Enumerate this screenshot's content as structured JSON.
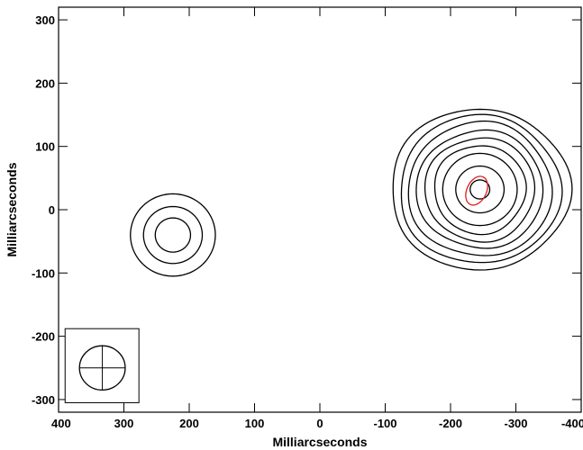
{
  "chart_data": {
    "type": "contour",
    "xlabel": "Milliarcseconds",
    "ylabel": "Milliarcseconds",
    "xlim": [
      400,
      -400
    ],
    "ylim": [
      -320,
      320
    ],
    "xticks": [
      400,
      300,
      200,
      100,
      0,
      -100,
      -200,
      -300,
      -400
    ],
    "yticks": [
      -300,
      -200,
      -100,
      0,
      100,
      200,
      300
    ],
    "xtick_labels": [
      "400",
      "300",
      "200",
      "100",
      "0",
      "-100",
      "-200",
      "-300",
      "-400"
    ],
    "ytick_labels": [
      "-300",
      "-200",
      "-100",
      "0",
      "100",
      "200",
      "300"
    ],
    "colors": {
      "contour": "#000000",
      "highlight": "#e02020"
    },
    "sources": [
      {
        "center": [
          225,
          -40
        ],
        "radii": [
          [
            27,
            27
          ],
          [
            45,
            45
          ],
          [
            65,
            65
          ]
        ]
      },
      {
        "center": [
          -245,
          32
        ],
        "radii": [
          [
            15,
            15
          ],
          [
            37,
            37
          ],
          [
            57,
            57
          ],
          [
            70,
            70
          ],
          [
            84,
            82
          ],
          [
            97,
            93
          ],
          [
            110,
            106
          ],
          [
            123,
            117
          ],
          [
            137,
            127
          ]
        ]
      }
    ],
    "highlight_contour": {
      "center": [
        -240,
        30
      ],
      "radii": [
        15,
        24
      ],
      "rotation": 25
    },
    "beam": {
      "box_x": [
        390,
        277
      ],
      "box_y": [
        -188,
        -305
      ],
      "center": [
        333,
        -250
      ],
      "radius": [
        35,
        35
      ]
    }
  }
}
